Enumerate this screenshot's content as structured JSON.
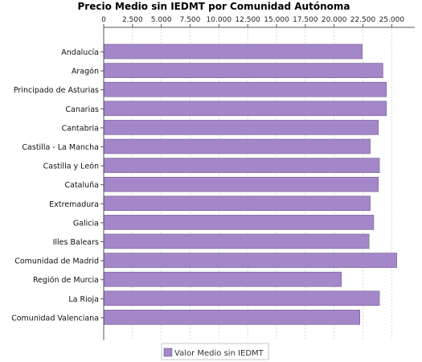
{
  "chart_data": {
    "type": "bar",
    "orientation": "horizontal",
    "title": "Precio Medio sin IEDMT por Comunidad Autónoma",
    "xlabel": "",
    "ylabel": "",
    "xlim": [
      0,
      27000
    ],
    "ticks": [
      0,
      2500,
      5000,
      7500,
      10000,
      12500,
      15000,
      17500,
      20000,
      22500,
      25000
    ],
    "tick_labels": [
      "0",
      "2.500",
      "5.000",
      "7.500",
      "10.000",
      "12.500",
      "15.000",
      "17.500",
      "20.000",
      "22.500",
      "25.000"
    ],
    "categories": [
      "Andalucía",
      "Aragón",
      "Principado de Asturias",
      "Canarias",
      "Cantabria",
      "Castilla - La Mancha",
      "Castilla y León",
      "Cataluña",
      "Extremadura",
      "Galicia",
      "Illes Balears",
      "Comunidad de Madrid",
      "Región de Murcia",
      "La Rioja",
      "Comunidad Valenciana"
    ],
    "series": [
      {
        "name": "Valor Medio sin IEDMT",
        "values": [
          22400,
          24200,
          24500,
          24500,
          23800,
          23100,
          23900,
          23800,
          23100,
          23400,
          23000,
          25400,
          20600,
          23900,
          22200
        ],
        "color": "#a487c8"
      }
    ],
    "grid": true,
    "axis_position": "top",
    "legend_position": "bottom"
  }
}
